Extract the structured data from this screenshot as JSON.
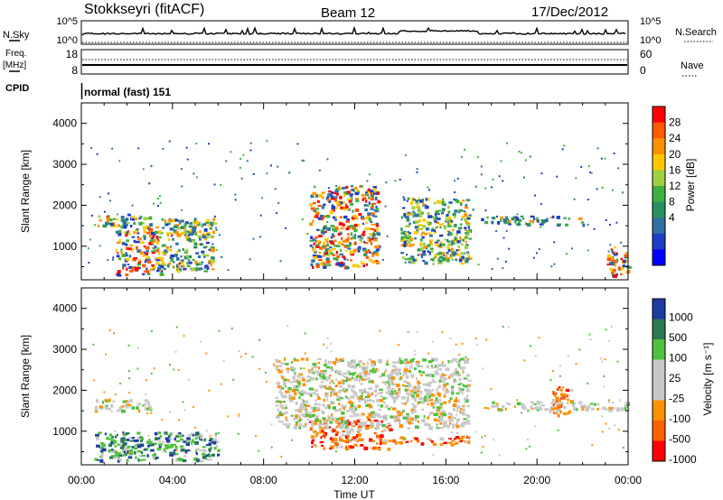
{
  "header": {
    "station": "Stokkseyri (fitACF)",
    "beam": "Beam 12",
    "date": "17/Dec/2012"
  },
  "nsky_panel": {
    "left_label": "N.Sky",
    "left_ticks": [
      "10^5",
      "10^0"
    ],
    "right_label": "N.Search",
    "right_ticks": [
      "10^5",
      "10^0"
    ]
  },
  "freq_panel": {
    "left_label_1": "Freq.",
    "left_label_2": "[MHz]",
    "left_ticks": [
      "18",
      "8"
    ],
    "right_label": "Nave",
    "right_ticks": [
      "60",
      "0"
    ],
    "cpid_label": "CPID"
  },
  "cpid_text": "normal (fast) 151",
  "chart_data": [
    {
      "type": "heatmap",
      "name": "Power",
      "ylabel": "Slant Range [km]",
      "yticks": [
        "4000",
        "3000",
        "2000",
        "1000"
      ],
      "ylim": [
        180,
        4500
      ],
      "xlim_hours": [
        0,
        24
      ],
      "colorbar_label": "Power [dB]",
      "colorbar_ticks": [
        "28",
        "24",
        "20",
        "16",
        "12",
        "8",
        "4"
      ],
      "colorbar_colors": [
        "#ff0000",
        "#ff5a00",
        "#ff9000",
        "#ffc800",
        "#a0d040",
        "#40b040",
        "#2a9060",
        "#3070a0",
        "#1e3cc8",
        "#0000ff"
      ],
      "echo_regions": [
        {
          "t0": 0.5,
          "t1": 3.0,
          "r0": 1500,
          "r1": 1800,
          "level": "medium"
        },
        {
          "t0": 1.5,
          "t1": 3.5,
          "r0": 300,
          "r1": 1500,
          "level": "high"
        },
        {
          "t0": 3.5,
          "t1": 5.8,
          "r0": 400,
          "r1": 1700,
          "level": "medium"
        },
        {
          "t0": 10.0,
          "t1": 13.0,
          "r0": 500,
          "r1": 2500,
          "level": "high"
        },
        {
          "t0": 14.0,
          "t1": 17.0,
          "r0": 600,
          "r1": 2200,
          "level": "medium"
        },
        {
          "t0": 17.5,
          "t1": 22.0,
          "r0": 1550,
          "r1": 1750,
          "level": "low"
        },
        {
          "t0": 23.0,
          "t1": 24.0,
          "r0": 300,
          "r1": 1000,
          "level": "high"
        }
      ]
    },
    {
      "type": "heatmap",
      "name": "Velocity",
      "ylabel": "Slant Range [km]",
      "yticks": [
        "4000",
        "3000",
        "2000",
        "1000"
      ],
      "ylim": [
        180,
        4500
      ],
      "xlim_hours": [
        0,
        24
      ],
      "xticks": [
        "00:00",
        "04:00",
        "08:00",
        "12:00",
        "16:00",
        "20:00",
        "00:00"
      ],
      "xlabel": "Time UT",
      "colorbar_label": "Velocity [m s⁻¹]",
      "colorbar_ticks": [
        "1000",
        "500",
        "100",
        "25",
        "-25",
        "-100",
        "-500",
        "-1000"
      ],
      "colorbar_colors": [
        "#1e3ca0",
        "#2a7a50",
        "#50c040",
        "#c8c8c8",
        "#c8c8c8",
        "#ff9000",
        "#ff6000",
        "#ff0000"
      ],
      "echo_regions": [
        {
          "t0": 0.5,
          "t1": 6.0,
          "r0": 300,
          "r1": 1000,
          "level": "positive"
        },
        {
          "t0": 0.5,
          "t1": 3.0,
          "r0": 1500,
          "r1": 1800,
          "level": "ground"
        },
        {
          "t0": 10.0,
          "t1": 13.5,
          "r0": 600,
          "r1": 1300,
          "level": "negative"
        },
        {
          "t0": 13.0,
          "t1": 17.0,
          "r0": 700,
          "r1": 900,
          "level": "negative"
        },
        {
          "t0": 8.5,
          "t1": 17.0,
          "r0": 1100,
          "r1": 2800,
          "level": "ground"
        },
        {
          "t0": 17.5,
          "t1": 24.0,
          "r0": 1550,
          "r1": 1750,
          "level": "ground"
        },
        {
          "t0": 20.5,
          "t1": 21.5,
          "r0": 1400,
          "r1": 2100,
          "level": "negative"
        }
      ]
    }
  ]
}
